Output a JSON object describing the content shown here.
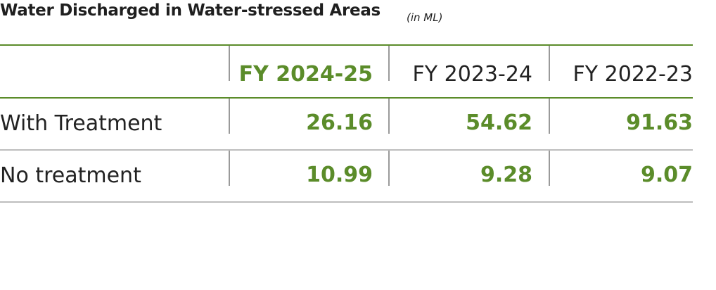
{
  "title": "Water Discharged in Water-stressed Areas",
  "unit": "(in ML)",
  "table": {
    "columns": [
      "FY 2024-25",
      "FY 2023-24",
      "FY 2022-23"
    ],
    "rows": [
      {
        "label": "With Treatment",
        "values": [
          "26.16",
          "54.62",
          "91.63"
        ]
      },
      {
        "label": "No treatment",
        "values": [
          "10.99",
          "9.28",
          "9.07"
        ]
      }
    ]
  },
  "colors": {
    "accent": "#5b8c2a",
    "text": "#222222",
    "rule": "#bdbdbd"
  }
}
